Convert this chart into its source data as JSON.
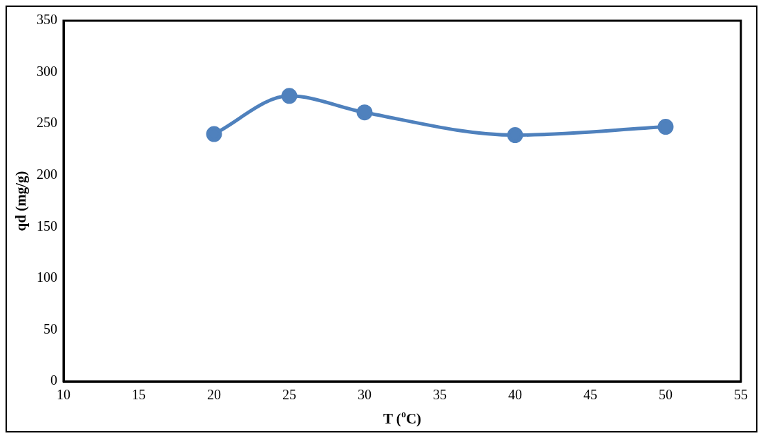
{
  "chart_data": {
    "type": "line",
    "xlabel": "T ($^{o}$C)",
    "ylabel": "qd (mg/g)",
    "x": [
      20,
      25,
      30,
      40,
      50
    ],
    "series": [
      {
        "color": "#4f81bd",
        "values": [
          240,
          277,
          261,
          239,
          247
        ]
      }
    ],
    "xlim": [
      10,
      55
    ],
    "xticks": [
      10,
      15,
      20,
      25,
      30,
      35,
      40,
      45,
      50,
      55
    ],
    "ylim": [
      0,
      350
    ],
    "yticks": [
      0,
      50,
      100,
      150,
      200,
      250,
      300,
      350
    ],
    "grid": false,
    "legend": false,
    "marker": "circle",
    "line_style": "solid"
  }
}
